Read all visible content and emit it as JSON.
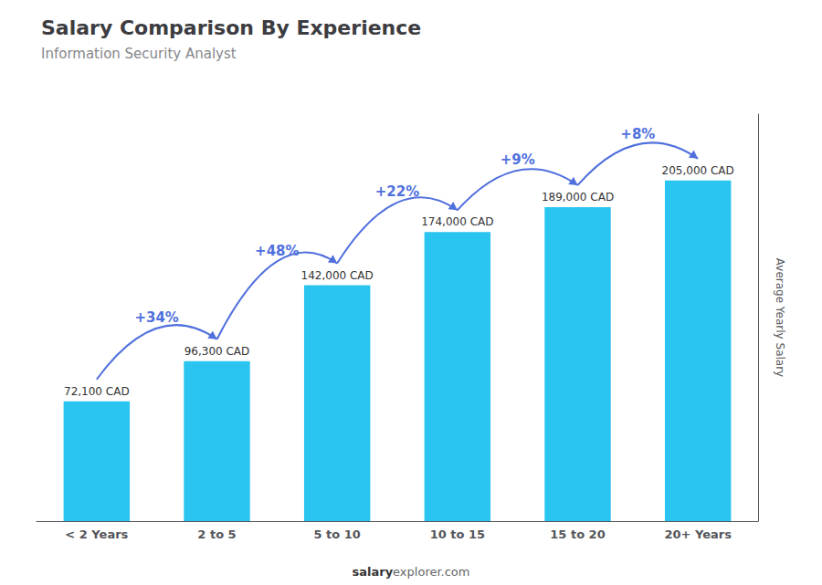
{
  "chart_data": {
    "type": "bar",
    "title": "Salary Comparison By Experience",
    "subtitle": "Information Security Analyst",
    "categories": [
      "< 2 Years",
      "2 to 5",
      "5 to 10",
      "10 to 15",
      "15 to 20",
      "20+ Years"
    ],
    "values": [
      72100,
      96300,
      142000,
      174000,
      189000,
      205000
    ],
    "value_labels": [
      "72,100 CAD",
      "96,300 CAD",
      "142,000 CAD",
      "174,000 CAD",
      "189,000 CAD",
      "205,000 CAD"
    ],
    "data_labels": true,
    "annotations": [
      "+34%",
      "+48%",
      "+22%",
      "+9%",
      "+8%"
    ],
    "ylabel": "Average Yearly Salary",
    "footer": [
      "salary",
      "explorer.com"
    ],
    "ylim": [
      0,
      245000
    ],
    "grid": false,
    "tick_labels": "x",
    "color": "#29c5f0"
  }
}
